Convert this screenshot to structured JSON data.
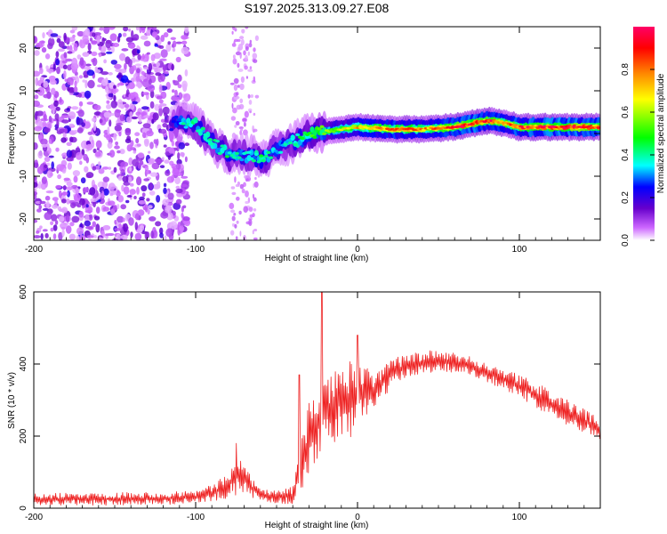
{
  "title": "S197.2025.313.09.27.E08",
  "chart_data": [
    {
      "type": "heatmap",
      "name": "spectrogram",
      "xlabel": "Height of straight line (km)",
      "ylabel": "Frequency (Hz)",
      "xlim": [
        -200,
        150
      ],
      "ylim": [
        -25,
        25
      ],
      "xticks": [
        -200,
        -100,
        0,
        100
      ],
      "xtick_labels": [
        "-200",
        "-100",
        "0",
        "100"
      ],
      "yticks": [
        -20,
        -10,
        0,
        10,
        20
      ],
      "ytick_labels": [
        "-20",
        "-10",
        "0",
        "10",
        "20"
      ],
      "colorbar": {
        "label": "Normalized spectral amplitude",
        "range": [
          0,
          1
        ],
        "ticks": [
          0.0,
          0.2,
          0.4,
          0.6,
          0.8
        ],
        "tick_labels": [
          "0.0",
          "0.2",
          "0.4",
          "0.6",
          "0.8"
        ],
        "colors": [
          "#ffffff",
          "#cc66ff",
          "#6600cc",
          "#0000ff",
          "#00ffff",
          "#00ff00",
          "#ffff00",
          "#ff8800",
          "#ff0000",
          "#ff0066"
        ]
      },
      "signal_trace": {
        "x": [
          -115,
          -110,
          -100,
          -90,
          -80,
          -70,
          -60,
          -50,
          -40,
          -30,
          -20,
          -10,
          0,
          20,
          40,
          60,
          80,
          90,
          100,
          110,
          120,
          150
        ],
        "frequency": [
          2,
          3,
          2,
          -2,
          -5,
          -5,
          -6,
          -4,
          -2,
          0,
          0.5,
          1,
          1.5,
          1,
          1,
          1.5,
          3,
          2.5,
          1.5,
          1.5,
          1.5,
          1.5
        ],
        "amplitude": [
          0.25,
          0.35,
          0.45,
          0.4,
          0.42,
          0.35,
          0.45,
          0.35,
          0.4,
          0.5,
          0.55,
          0.65,
          0.75,
          0.85,
          0.8,
          0.9,
          0.95,
          0.85,
          0.9,
          0.92,
          0.95,
          0.95
        ]
      }
    },
    {
      "type": "line",
      "name": "snr",
      "xlabel": "Height of straight line (km)",
      "ylabel": "SNR (10 * v/v)",
      "xlim": [
        -200,
        150
      ],
      "ylim": [
        0,
        600
      ],
      "xticks": [
        -200,
        -100,
        0,
        100
      ],
      "xtick_labels": [
        "-200",
        "-100",
        "0",
        "100"
      ],
      "yticks": [
        0,
        200,
        400,
        600
      ],
      "ytick_labels": [
        "0",
        "200",
        "400",
        "600"
      ],
      "color": "#ee2222",
      "envelope": {
        "x": [
          -200,
          -150,
          -120,
          -100,
          -90,
          -80,
          -72,
          -66,
          -60,
          -50,
          -40,
          -35,
          -30,
          -25,
          -20,
          -15,
          -10,
          -5,
          0,
          10,
          20,
          30,
          50,
          70,
          90,
          110,
          130,
          150
        ],
        "low": [
          8,
          8,
          10,
          12,
          18,
          28,
          40,
          30,
          18,
          12,
          12,
          40,
          100,
          130,
          160,
          170,
          200,
          180,
          240,
          270,
          330,
          360,
          380,
          370,
          330,
          280,
          230,
          190
        ],
        "high": [
          40,
          45,
          45,
          50,
          65,
          95,
          170,
          90,
          55,
          50,
          60,
          180,
          300,
          340,
          360,
          370,
          420,
          410,
          400,
          380,
          410,
          430,
          440,
          420,
          390,
          350,
          300,
          250
        ]
      },
      "spikes": [
        {
          "x": -22,
          "y": 600
        },
        {
          "x": -36,
          "y": 370
        },
        {
          "x": 0,
          "y": 480
        },
        {
          "x": -75,
          "y": 180
        }
      ]
    }
  ]
}
